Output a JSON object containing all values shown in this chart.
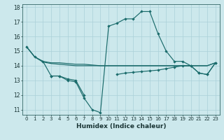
{
  "xlabel": "Humidex (Indice chaleur)",
  "x": [
    0,
    1,
    2,
    3,
    4,
    5,
    6,
    7,
    8,
    9,
    10,
    11,
    12,
    13,
    14,
    15,
    16,
    17,
    18,
    19,
    20,
    21,
    22,
    23
  ],
  "line_main": [
    15.3,
    14.6,
    14.3,
    13.3,
    13.3,
    13.0,
    12.9,
    11.8,
    11.0,
    10.8,
    16.7,
    16.9,
    17.2,
    17.2,
    17.7,
    17.7,
    16.2,
    15.0,
    14.3,
    14.3,
    14.0,
    13.5,
    13.4,
    14.2
  ],
  "line_flat1": [
    15.3,
    14.6,
    14.3,
    14.2,
    14.2,
    14.15,
    14.1,
    14.1,
    14.05,
    14.0,
    14.0,
    14.0,
    14.0,
    14.0,
    14.0,
    14.0,
    14.0,
    14.0,
    14.0,
    14.0,
    14.0,
    14.0,
    14.0,
    14.2
  ],
  "line_flat2": [
    15.3,
    14.6,
    14.25,
    14.15,
    14.1,
    14.05,
    14.0,
    14.0,
    14.0,
    14.0,
    14.0,
    14.0,
    14.0,
    14.0,
    14.0,
    14.0,
    14.0,
    14.0,
    14.0,
    14.0,
    14.0,
    14.0,
    14.0,
    14.2
  ],
  "line_lower": [
    null,
    null,
    null,
    13.3,
    13.3,
    13.1,
    13.0,
    12.0,
    null,
    null,
    null,
    13.4,
    13.5,
    13.55,
    13.6,
    13.65,
    13.7,
    13.8,
    13.9,
    14.0,
    14.0,
    13.5,
    13.4,
    14.2
  ],
  "ylim": [
    10.65,
    18.2
  ],
  "yticks": [
    11,
    12,
    13,
    14,
    15,
    16,
    17,
    18
  ],
  "xlim": [
    -0.5,
    23.5
  ],
  "bg_color": "#cce8ec",
  "grid_color": "#aad0d8",
  "line_color": "#1a6b6b",
  "markersize": 2.2
}
